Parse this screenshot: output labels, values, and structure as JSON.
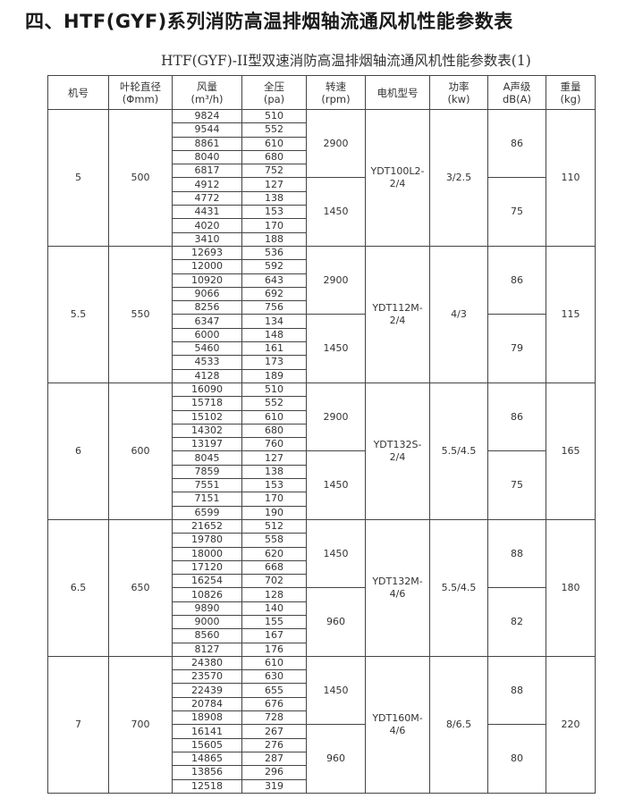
{
  "title": "四、HTF(GYF)系列消防高温排烟轴流通风机性能参数表",
  "subtitle": "HTF(GYF)-II型双速消防高温排烟轴流通风机性能参数表(1)",
  "headers": [
    {
      "l1": "机号",
      "l2": ""
    },
    {
      "l1": "叶轮直径",
      "l2": "(Φmm)"
    },
    {
      "l1": "风量",
      "l2": "(m³/h)"
    },
    {
      "l1": "全压",
      "l2": "(pa)"
    },
    {
      "l1": "转速",
      "l2": "(rpm)"
    },
    {
      "l1": "电机型号",
      "l2": ""
    },
    {
      "l1": "功率",
      "l2": "(kw)"
    },
    {
      "l1": "A声级",
      "l2": "dB(A)"
    },
    {
      "l1": "重量",
      "l2": "(kg)"
    }
  ],
  "groups": [
    {
      "no": "5",
      "dia": "500",
      "motor": "YDT100L2-2/4",
      "power": "3/2.5",
      "weight": "110",
      "speeds": [
        {
          "rpm": "2900",
          "noise": "86",
          "rows": [
            [
              "9824",
              "510"
            ],
            [
              "9544",
              "552"
            ],
            [
              "8861",
              "610"
            ],
            [
              "8040",
              "680"
            ],
            [
              "6817",
              "752"
            ]
          ]
        },
        {
          "rpm": "1450",
          "noise": "75",
          "rows": [
            [
              "4912",
              "127"
            ],
            [
              "4772",
              "138"
            ],
            [
              "4431",
              "153"
            ],
            [
              "4020",
              "170"
            ],
            [
              "3410",
              "188"
            ]
          ]
        }
      ]
    },
    {
      "no": "5.5",
      "dia": "550",
      "motor": "YDT112M-2/4",
      "power": "4/3",
      "weight": "115",
      "speeds": [
        {
          "rpm": "2900",
          "noise": "86",
          "rows": [
            [
              "12693",
              "536"
            ],
            [
              "12000",
              "592"
            ],
            [
              "10920",
              "643"
            ],
            [
              "9066",
              "692"
            ],
            [
              "8256",
              "756"
            ]
          ]
        },
        {
          "rpm": "1450",
          "noise": "79",
          "rows": [
            [
              "6347",
              "134"
            ],
            [
              "6000",
              "148"
            ],
            [
              "5460",
              "161"
            ],
            [
              "4533",
              "173"
            ],
            [
              "4128",
              "189"
            ]
          ]
        }
      ]
    },
    {
      "no": "6",
      "dia": "600",
      "motor": "YDT132S-2/4",
      "power": "5.5/4.5",
      "weight": "165",
      "speeds": [
        {
          "rpm": "2900",
          "noise": "86",
          "rows": [
            [
              "16090",
              "510"
            ],
            [
              "15718",
              "552"
            ],
            [
              "15102",
              "610"
            ],
            [
              "14302",
              "680"
            ],
            [
              "13197",
              "760"
            ]
          ]
        },
        {
          "rpm": "1450",
          "noise": "75",
          "rows": [
            [
              "8045",
              "127"
            ],
            [
              "7859",
              "138"
            ],
            [
              "7551",
              "153"
            ],
            [
              "7151",
              "170"
            ],
            [
              "6599",
              "190"
            ]
          ]
        }
      ]
    },
    {
      "no": "6.5",
      "dia": "650",
      "motor": "YDT132M-4/6",
      "power": "5.5/4.5",
      "weight": "180",
      "speeds": [
        {
          "rpm": "1450",
          "noise": "88",
          "rows": [
            [
              "21652",
              "512"
            ],
            [
              "19780",
              "558"
            ],
            [
              "18000",
              "620"
            ],
            [
              "17120",
              "668"
            ],
            [
              "16254",
              "702"
            ]
          ]
        },
        {
          "rpm": "960",
          "noise": "82",
          "rows": [
            [
              "10826",
              "128"
            ],
            [
              "9890",
              "140"
            ],
            [
              "9000",
              "155"
            ],
            [
              "8560",
              "167"
            ],
            [
              "8127",
              "176"
            ]
          ]
        }
      ]
    },
    {
      "no": "7",
      "dia": "700",
      "motor": "YDT160M-4/6",
      "power": "8/6.5",
      "weight": "220",
      "speeds": [
        {
          "rpm": "1450",
          "noise": "88",
          "rows": [
            [
              "24380",
              "610"
            ],
            [
              "23570",
              "630"
            ],
            [
              "22439",
              "655"
            ],
            [
              "20784",
              "676"
            ],
            [
              "18908",
              "728"
            ]
          ]
        },
        {
          "rpm": "960",
          "noise": "80",
          "rows": [
            [
              "16141",
              "267"
            ],
            [
              "15605",
              "276"
            ],
            [
              "14865",
              "287"
            ],
            [
              "13856",
              "296"
            ],
            [
              "12518",
              "319"
            ]
          ]
        }
      ]
    }
  ]
}
